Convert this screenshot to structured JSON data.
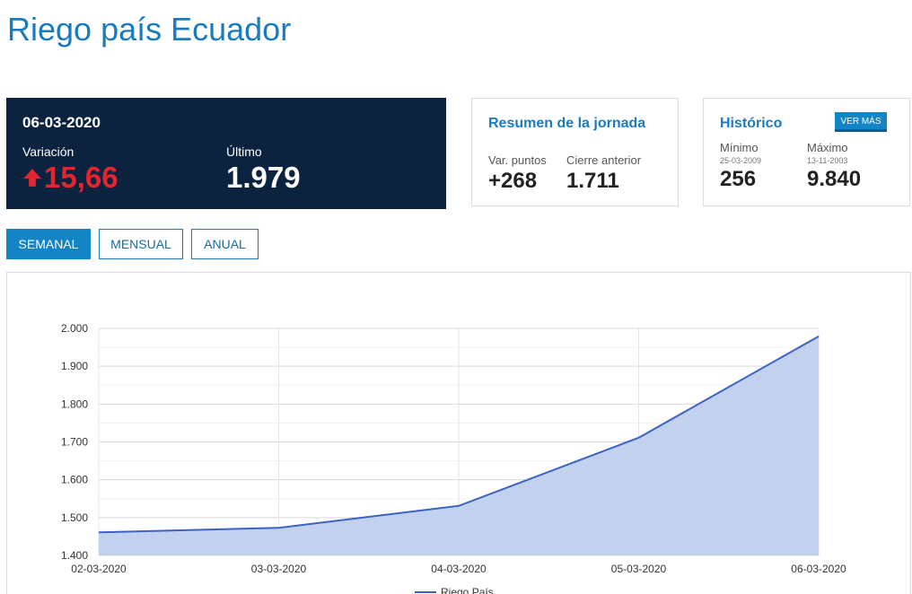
{
  "page": {
    "title": "Riego país Ecuador"
  },
  "summary": {
    "date": "06-03-2020",
    "variation_label": "Variación",
    "variation_value": "15,66",
    "last_label": "Último",
    "last_value": "1.979"
  },
  "resumen": {
    "title": "Resumen de la jornada",
    "var_puntos_label": "Var. puntos",
    "var_puntos_value": "+268",
    "cierre_label": "Cierre anterior",
    "cierre_value": "1.711"
  },
  "historico": {
    "title": "Histórico",
    "ver_mas": "VER MÁS",
    "min_label": "Mínimo",
    "min_date": "25-03-2009",
    "min_value": "256",
    "max_label": "Máximo",
    "max_date": "13-11-2003",
    "max_value": "9.840"
  },
  "tabs": [
    {
      "label": "SEMANAL",
      "active": true
    },
    {
      "label": "MENSUAL",
      "active": false
    },
    {
      "label": "ANUAL",
      "active": false
    }
  ],
  "colors": {
    "title": "#1a7bbf",
    "dark_card": "#0c2340",
    "up_red": "#e3262d",
    "line": "#3b62c4",
    "area": "#c2d1ee"
  },
  "chart_data": {
    "type": "area",
    "x": [
      "02-03-2020",
      "03-03-2020",
      "04-03-2020",
      "05-03-2020",
      "06-03-2020"
    ],
    "series": [
      {
        "name": "Riego País",
        "values": [
          1461,
          1473,
          1531,
          1711,
          1979
        ]
      }
    ],
    "ylim": [
      1400,
      2000
    ],
    "yticks": [
      "2.000",
      "1.900",
      "1.800",
      "1.700",
      "1.600",
      "1.500",
      "1.400"
    ],
    "ytick_values": [
      2000,
      1900,
      1800,
      1700,
      1600,
      1500,
      1400
    ],
    "grid": true,
    "legend": "bottom"
  }
}
